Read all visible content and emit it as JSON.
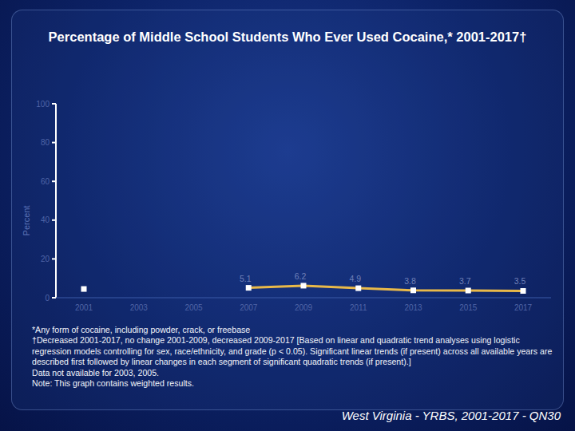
{
  "chart_data": {
    "type": "line",
    "title": "Percentage of Middle School Students Who Ever Used Cocaine,* 2001-2017†",
    "y_label": "Percent",
    "categories": [
      "2001",
      "2003",
      "2005",
      "2007",
      "2009",
      "2011",
      "2013",
      "2015",
      "2017"
    ],
    "values": [
      4.5,
      null,
      null,
      5.1,
      6.2,
      4.9,
      3.8,
      3.7,
      3.5
    ],
    "value_labels": [
      null,
      null,
      null,
      "5.1",
      "6.2",
      "4.9",
      "3.8",
      "3.7",
      "3.5"
    ],
    "data_labels": true,
    "color": "#e9b949",
    "marker": "square",
    "ylim": [
      0,
      100
    ],
    "yticks": [
      0,
      20,
      40,
      60,
      80,
      100
    ],
    "grid": false,
    "notes": [
      "*Any form of cocaine, including powder, crack, or freebase",
      "†Decreased 2001-2017, no change 2001-2009, decreased 2009-2017 [Based on linear and quadratic trend analyses using logistic regression models controlling for sex, race/ethnicity, and grade (p < 0.05). Significant linear trends (if present) across all available years are described first followed by linear changes in each segment of significant quadratic trends (if present).]",
      "Data not available for 2003, 2005.",
      "Note: This graph contains weighted results."
    ],
    "source": "West Virginia - YRBS, 2001-2017 - QN30"
  }
}
